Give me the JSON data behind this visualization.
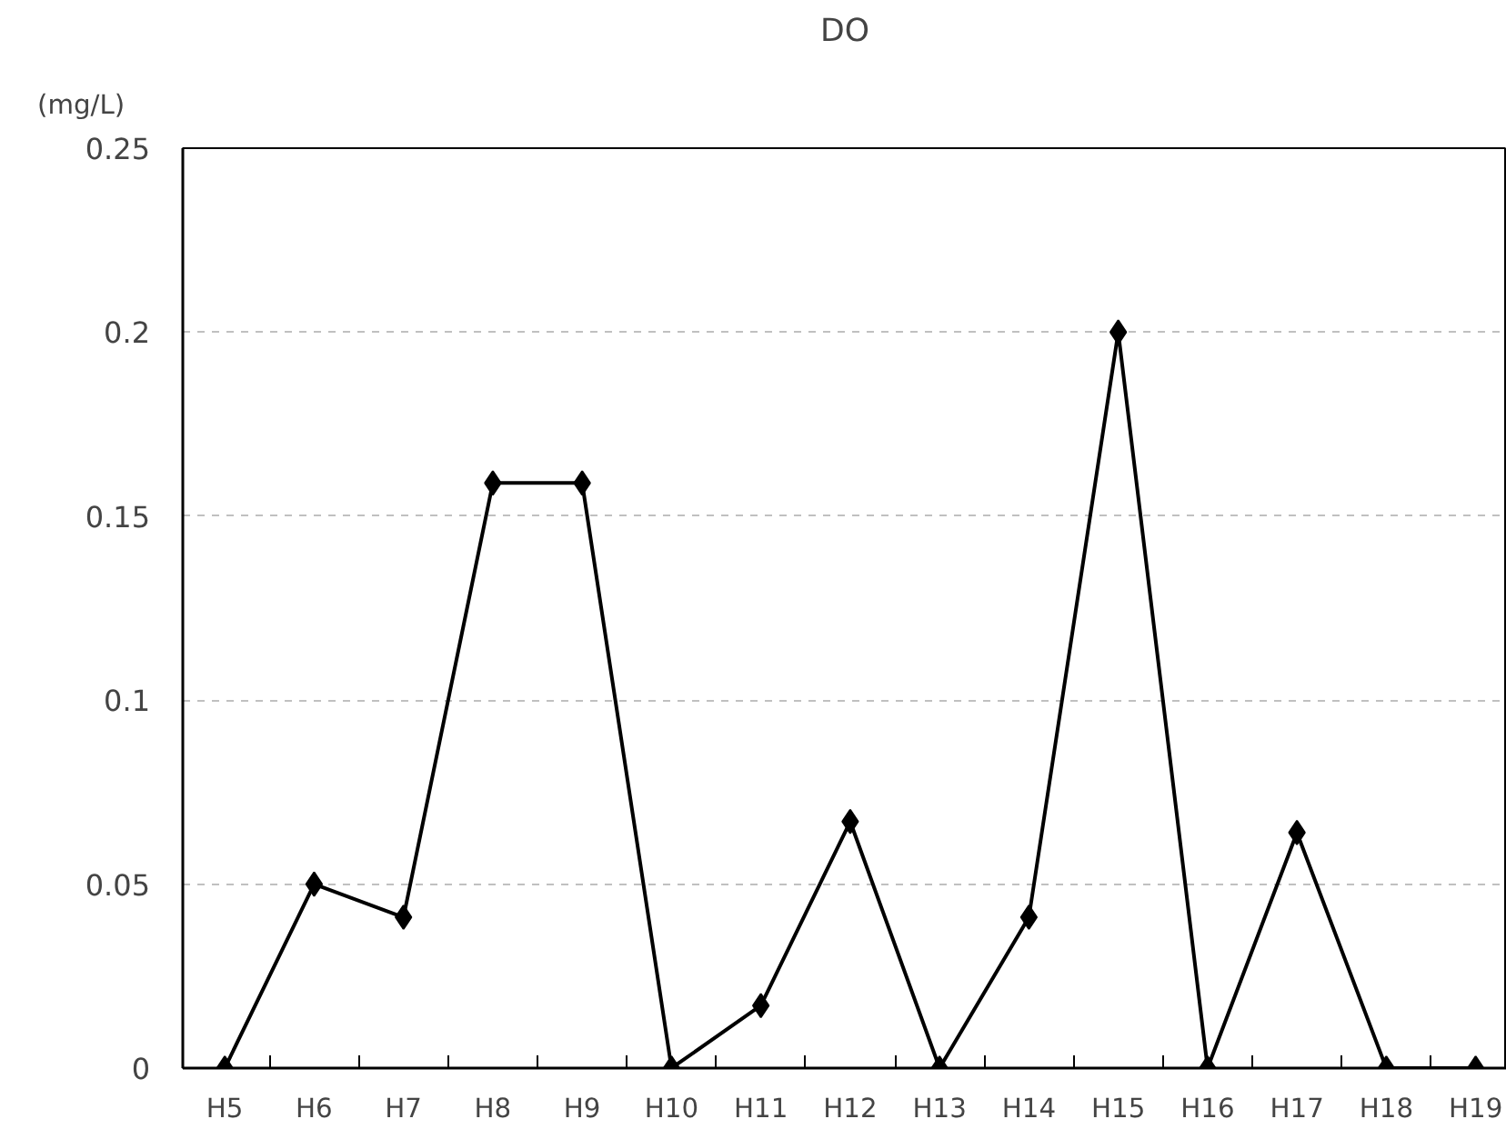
{
  "chart_data": {
    "type": "line",
    "title": "DO",
    "ylabel": "(mg/L)",
    "categories": [
      "H5",
      "H6",
      "H7",
      "H8",
      "H9",
      "H10",
      "H11",
      "H12",
      "H13",
      "H14",
      "H15",
      "H16",
      "H17",
      "H18",
      "H19"
    ],
    "series": [
      {
        "color": "#000000",
        "values": [
          0,
          0.05,
          0.041,
          0.159,
          0.159,
          0,
          0.017,
          0.067,
          0,
          0.041,
          0.2,
          0,
          0.064,
          0,
          0
        ]
      }
    ],
    "ylim": [
      0,
      0.25
    ],
    "yticks": [
      0,
      0.05,
      0.1,
      0.15,
      0.2,
      0.25
    ],
    "grid": "y",
    "marker": "diamond",
    "line_style": "solid"
  }
}
